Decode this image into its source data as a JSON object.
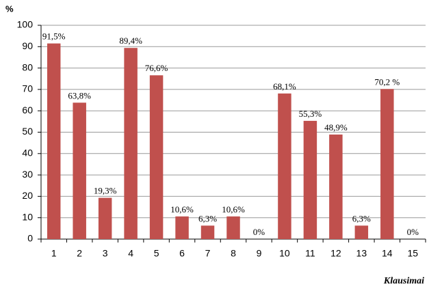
{
  "chart_data": {
    "type": "bar",
    "y_label": "%",
    "x_label": "Klausimai",
    "categories": [
      "1",
      "2",
      "3",
      "4",
      "5",
      "6",
      "7",
      "8",
      "9",
      "10",
      "11",
      "12",
      "13",
      "14",
      "15"
    ],
    "values": [
      91.5,
      63.8,
      19.3,
      89.4,
      76.6,
      10.6,
      6.3,
      10.6,
      0,
      68.1,
      55.3,
      48.9,
      6.3,
      70.2,
      0
    ],
    "value_labels": [
      "91,5%",
      "63,8%",
      "19,3%",
      "89,4%",
      "76,6%",
      "10,6%",
      "6,3%",
      "10,6%",
      "0%",
      "68,1%",
      "55,3%",
      "48,9%",
      "6,3%",
      "70,2 %",
      "0%"
    ],
    "color": "#c0504d",
    "ylim": [
      0,
      100
    ],
    "yticks": [
      0,
      10,
      20,
      30,
      40,
      50,
      60,
      70,
      80,
      90,
      100
    ],
    "grid": true
  }
}
